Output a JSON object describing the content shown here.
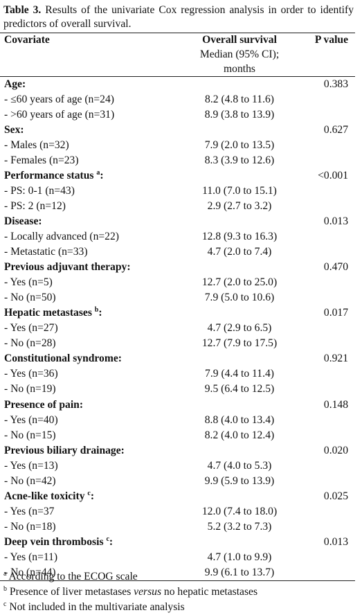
{
  "caption": {
    "label": "Table 3.",
    "text": "Results of the univariate Cox regression analysis in order to identify predictors of overall survival."
  },
  "table": {
    "header": {
      "covariate": "Covariate",
      "survival": "Overall survival",
      "survival_sub": [
        "Median (95% CI);",
        "months"
      ],
      "p_value": "P value"
    },
    "groups": [
      {
        "label": "Age:",
        "p": "0.383",
        "rows": [
          [
            "- ≤60 years of age (n=24)",
            "8.2 (4.8 to 11.6)"
          ],
          [
            "- >60 years of age (n=31)",
            "8.9 (3.8 to 13.9)"
          ]
        ]
      },
      {
        "label": "Sex:",
        "p": "0.627",
        "rows": [
          [
            "- Males (n=32)",
            "7.9 (2.0 to 13.5)"
          ],
          [
            "- Females (n=23)",
            "8.3 (3.9 to 12.6)"
          ]
        ]
      },
      {
        "label": "Performance status ",
        "note": "a",
        "after": ":",
        "p": "<0.001",
        "rows": [
          [
            "- PS: 0-1 (n=43)",
            "11.0 (7.0 to 15.1)"
          ],
          [
            "- PS: 2 (n=12)",
            "2.9 (2.7 to 3.2)"
          ]
        ]
      },
      {
        "label": "Disease:",
        "p": "0.013",
        "rows": [
          [
            "- Locally advanced (n=22)",
            "12.8 (9.3 to 16.3)"
          ],
          [
            "- Metastatic (n=33)",
            "4.7 (2.0 to 7.4)"
          ]
        ]
      },
      {
        "label": "Previous adjuvant therapy:",
        "p": "0.470",
        "rows": [
          [
            "- Yes (n=5)",
            "12.7 (2.0 to 25.0)"
          ],
          [
            "- No (n=50)",
            "7.9 (5.0 to 10.6)"
          ]
        ]
      },
      {
        "label": "Hepatic metastases ",
        "note": "b",
        "after": ":",
        "p": "0.017",
        "rows": [
          [
            "- Yes (n=27)",
            "4.7 (2.9 to 6.5)"
          ],
          [
            "- No (n=28)",
            "12.7 (7.9 to 17.5)"
          ]
        ]
      },
      {
        "label": "Constitutional syndrome:",
        "p": "0.921",
        "rows": [
          [
            "- Yes (n=36)",
            "7.9 (4.4 to 11.4)"
          ],
          [
            "- No (n=19)",
            "9.5 (6.4 to 12.5)"
          ]
        ]
      },
      {
        "label": "Presence of pain:",
        "p": "0.148",
        "rows": [
          [
            "- Yes (n=40)",
            "8.8 (4.0 to 13.4)"
          ],
          [
            "- No (n=15)",
            "8.2 (4.0 to 12.4)"
          ]
        ]
      },
      {
        "label": "Previous biliary drainage:",
        "p": "0.020",
        "rows": [
          [
            "- Yes (n=13)",
            "4.7 (4.0 to 5.3)"
          ],
          [
            "- No (n=42)",
            "9.9 (5.9 to 13.9)"
          ]
        ]
      },
      {
        "label": "Acne-like toxicity ",
        "note": "c",
        "after": ":",
        "p": "0.025",
        "rows": [
          [
            "- Yes (n=37",
            "12.0 (7.4 to 18.0)"
          ],
          [
            "- No (n=18)",
            "5.2 (3.2 to 7.3)"
          ]
        ]
      },
      {
        "label": "Deep vein thrombosis ",
        "note": "c",
        "after": ":",
        "p": "0.013",
        "rows": [
          [
            "- Yes (n=11)",
            "4.7 (1.0 to 9.9)"
          ],
          [
            "- No (n=44)",
            "9.9 (6.1 to 13.7)"
          ]
        ]
      }
    ]
  },
  "footnotes": [
    {
      "mark": "a",
      "parts": [
        " According to the ECOG scale"
      ]
    },
    {
      "mark": "b",
      "parts": [
        " Presence of liver metastases ",
        "versus",
        " no hepatic metastases"
      ]
    },
    {
      "mark": "c",
      "parts": [
        " Not included in the multivariate analysis"
      ]
    }
  ]
}
